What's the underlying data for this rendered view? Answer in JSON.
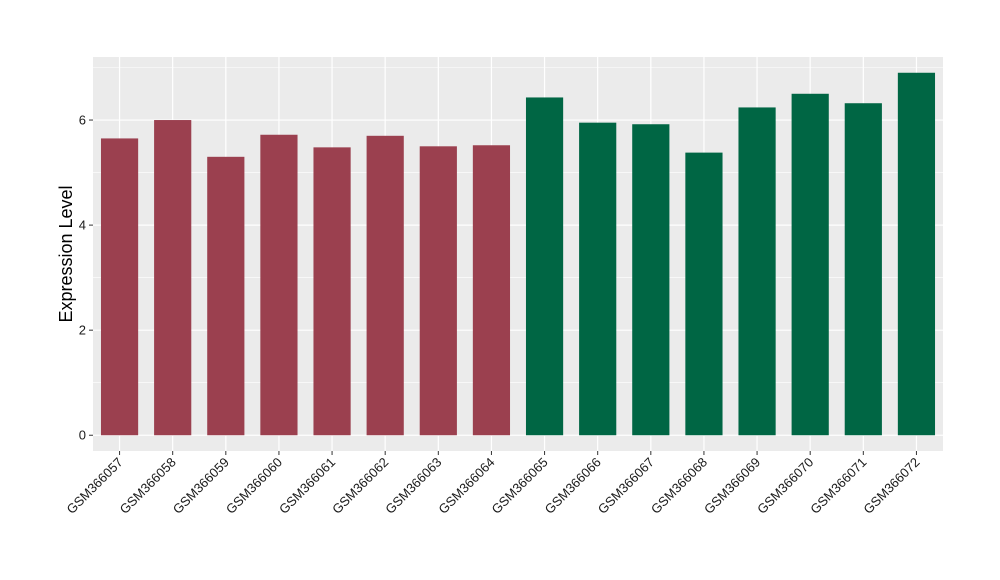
{
  "chart_data": {
    "type": "bar",
    "ylabel": "Expression Level",
    "xlabel": "",
    "title": "",
    "ylim": [
      -0.3,
      7.2
    ],
    "yticks": [
      0,
      2,
      4,
      6
    ],
    "grid": true,
    "categories": [
      "GSM366057",
      "GSM366058",
      "GSM366059",
      "GSM366060",
      "GSM366061",
      "GSM366062",
      "GSM366063",
      "GSM366064",
      "GSM366065",
      "GSM366066",
      "GSM366067",
      "GSM366068",
      "GSM366069",
      "GSM366070",
      "GSM366071",
      "GSM366072"
    ],
    "values": [
      5.65,
      6.0,
      5.3,
      5.72,
      5.48,
      5.7,
      5.5,
      5.52,
      6.43,
      5.95,
      5.92,
      5.38,
      6.24,
      6.5,
      6.32,
      6.9
    ],
    "groups": [
      0,
      0,
      0,
      0,
      0,
      0,
      0,
      0,
      1,
      1,
      1,
      1,
      1,
      1,
      1,
      1
    ],
    "colors": {
      "group0": "#9b404f",
      "group1": "#006644",
      "panel": "#ebebeb",
      "grid": "#ffffff"
    }
  }
}
